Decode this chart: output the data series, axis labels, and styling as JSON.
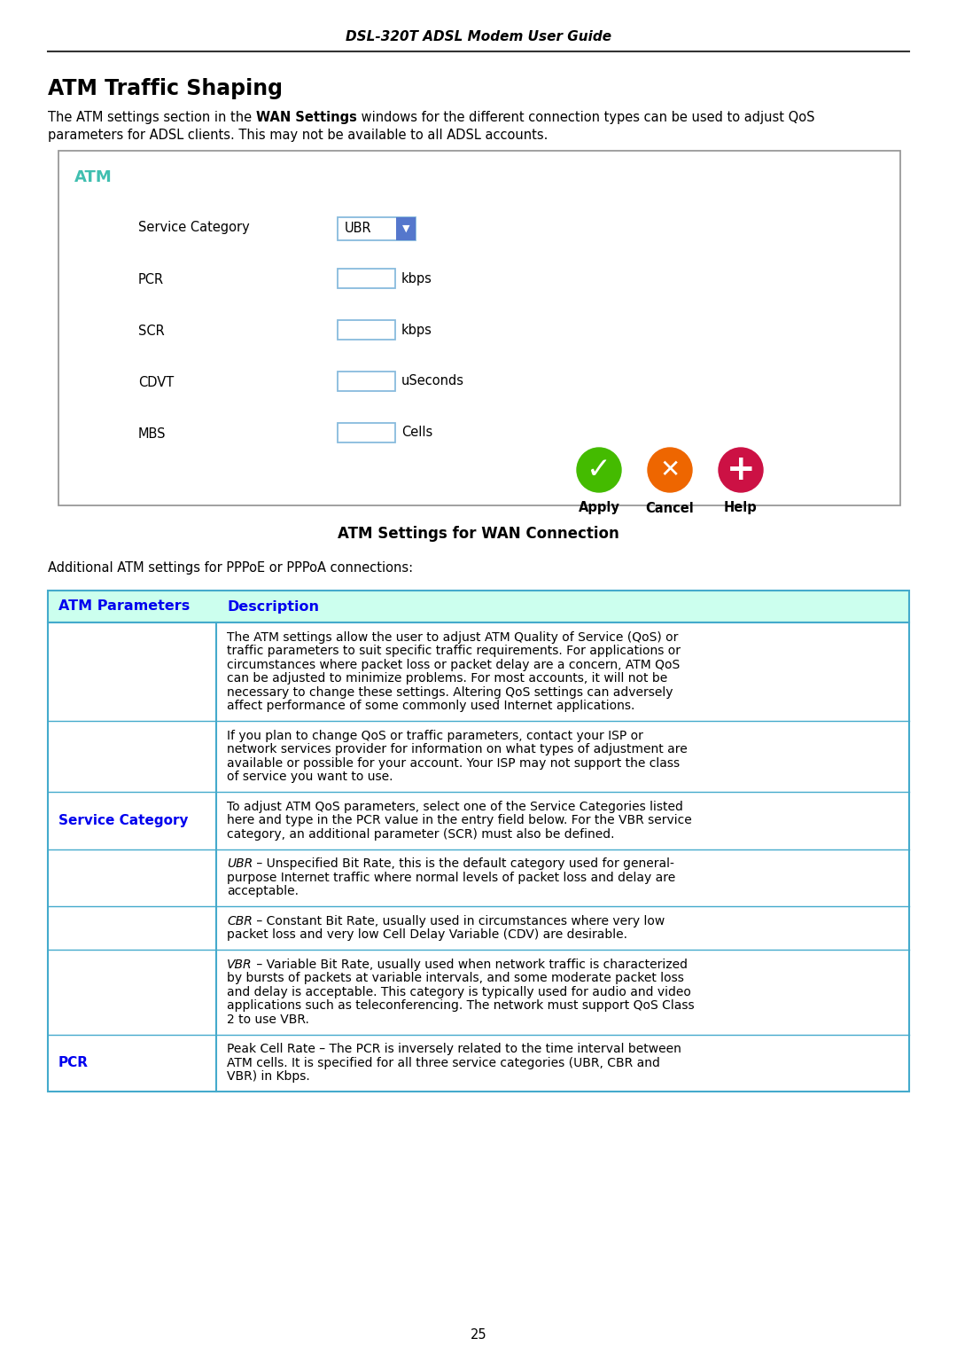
{
  "page_title": "DSL-320T ADSL Modem User Guide",
  "section_title": "ATM Traffic Shaping",
  "atm_box_title": "ATM",
  "atm_box_title_color": "#40BFB0",
  "buttons": [
    "Apply",
    "Cancel",
    "Help"
  ],
  "button_colors": [
    "#44BB00",
    "#EE6600",
    "#CC1144"
  ],
  "caption": "ATM Settings for WAN Connection",
  "table_intro": "Additional ATM settings for PPPoE or PPPoA connections:",
  "table_header_bg": "#CCFFEE",
  "table_header_col1": "ATM Parameters",
  "table_header_col2": "Description",
  "table_header_color": "#0000EE",
  "table_rows": [
    {
      "param": "",
      "param_color": "",
      "description_parts": [
        {
          "text": "The ATM settings allow the user to adjust ATM Quality of Service (QoS) or\ntraffic parameters to suit specific traffic requirements. For applications or\ncircumstances where packet loss or packet delay are a concern, ATM QoS\ncan be adjusted to minimize problems. For most accounts, it will not be\nnecessary to change these settings. Altering QoS settings can adversely\naffect performance of some commonly used Internet applications.",
          "italic": false
        }
      ]
    },
    {
      "param": "",
      "param_color": "",
      "description_parts": [
        {
          "text": "If you plan to change QoS or traffic parameters, contact your ISP or\nnetwork services provider for information on what types of adjustment are\navailable or possible for your account. Your ISP may not support the class\nof service you want to use.",
          "italic": false
        }
      ]
    },
    {
      "param": "Service Category",
      "param_color": "#0000EE",
      "description_parts": [
        {
          "text": "To adjust ATM QoS parameters, select one of the Service Categories listed\nhere and type in the PCR value in the entry field below. For the VBR service\ncategory, an additional parameter (SCR) must also be defined.",
          "italic": false
        }
      ]
    },
    {
      "param": "",
      "param_color": "",
      "description_parts": [
        {
          "text": "UBR",
          "italic": true
        },
        {
          "text": " – Unspecified Bit Rate, this is the default category used for general-\npurpose Internet traffic where normal levels of packet loss and delay are\nacceptable.",
          "italic": false
        }
      ]
    },
    {
      "param": "",
      "param_color": "",
      "description_parts": [
        {
          "text": "CBR",
          "italic": true
        },
        {
          "text": " – Constant Bit Rate, usually used in circumstances where very low\npacket loss and very low Cell Delay Variable (CDV) are desirable.",
          "italic": false
        }
      ]
    },
    {
      "param": "",
      "param_color": "",
      "description_parts": [
        {
          "text": "VBR",
          "italic": true
        },
        {
          "text": " – Variable Bit Rate, usually used when network traffic is characterized\nby bursts of packets at variable intervals, and some moderate packet loss\nand delay is acceptable. This category is typically used for audio and video\napplications such as teleconferencing. The network must support QoS Class\n2 to use VBR.",
          "italic": false
        }
      ]
    },
    {
      "param": "PCR",
      "param_color": "#0000EE",
      "description_parts": [
        {
          "text": "Peak Cell Rate – The PCR is inversely related to the time interval between\nATM cells. It is specified for all three service categories (UBR, CBR and\nVBR) in Kbps.",
          "italic": false
        }
      ]
    }
  ],
  "page_number": "25",
  "bg_color": "#FFFFFF",
  "text_color": "#000000",
  "border_color": "#999999",
  "input_border_color": "#88BBDD",
  "table_border_color": "#44AACC",
  "intro_normal1": "The ATM settings section in the ",
  "intro_bold": "WAN Settings",
  "intro_normal2": " windows for the different connection types can be used to adjust QoS",
  "intro_line2": "parameters for ADSL clients. This may not be available to all ADSL accounts."
}
